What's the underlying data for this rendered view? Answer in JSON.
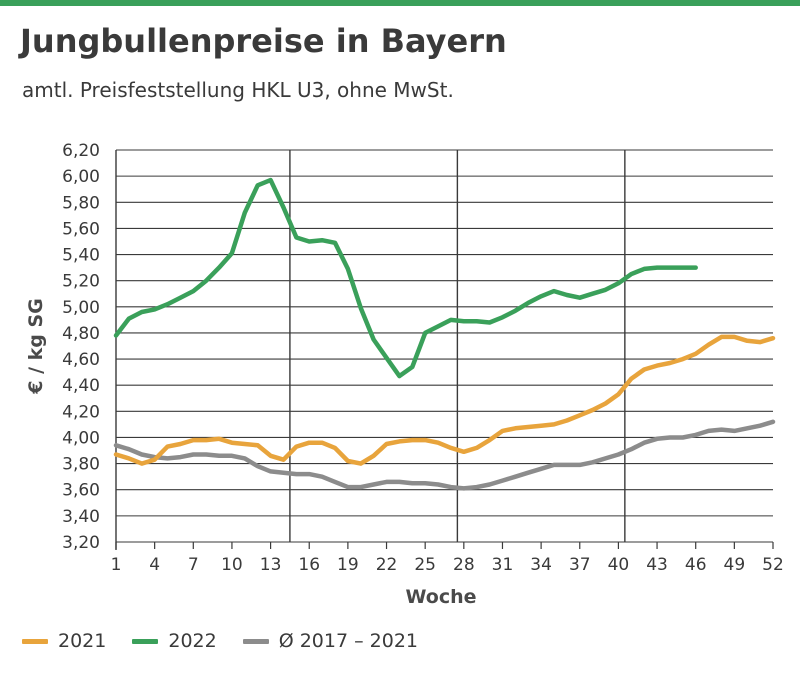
{
  "header": {
    "title": "Jungbullenpreise in Bayern",
    "subtitle": "amtl. Preisfeststellung HKL U3, ohne MwSt."
  },
  "chart_data": {
    "type": "line",
    "title": "Jungbullenpreise in Bayern",
    "subtitle": "amtl. Preisfeststellung HKL U3, ohne MwSt.",
    "xlabel": "Woche",
    "ylabel": "€ / kg SG",
    "xlim": [
      1,
      52
    ],
    "ylim": [
      3.2,
      6.2
    ],
    "x_ticks": [
      1,
      4,
      7,
      10,
      13,
      16,
      19,
      22,
      25,
      28,
      31,
      34,
      37,
      40,
      43,
      46,
      49,
      52
    ],
    "y_ticks": [
      "3,20",
      "3,40",
      "3,60",
      "3,80",
      "4,00",
      "4,20",
      "4,40",
      "4,60",
      "4,80",
      "5,00",
      "5,20",
      "5,40",
      "5,60",
      "5,80",
      "6,00",
      "6,20"
    ],
    "y_tick_values": [
      3.2,
      3.4,
      3.6,
      3.8,
      4.0,
      4.2,
      4.4,
      4.6,
      4.8,
      5.0,
      5.2,
      5.4,
      5.6,
      5.8,
      6.0,
      6.2
    ],
    "vertical_gridlines_at_weeks": [
      14.5,
      27.5,
      40.5
    ],
    "horizontal_grid": true,
    "legend_position": "bottom-left",
    "series": [
      {
        "name": "2021",
        "color": "#e8a43c",
        "x": [
          1,
          2,
          3,
          4,
          5,
          6,
          7,
          8,
          9,
          10,
          11,
          12,
          13,
          14,
          15,
          16,
          17,
          18,
          19,
          20,
          21,
          22,
          23,
          24,
          25,
          26,
          27,
          28,
          29,
          30,
          31,
          32,
          33,
          34,
          35,
          36,
          37,
          38,
          39,
          40,
          41,
          42,
          43,
          44,
          45,
          46,
          47,
          48,
          49,
          50,
          51,
          52
        ],
        "values": [
          3.87,
          3.84,
          3.8,
          3.83,
          3.93,
          3.95,
          3.98,
          3.98,
          3.99,
          3.96,
          3.95,
          3.94,
          3.86,
          3.83,
          3.93,
          3.96,
          3.96,
          3.92,
          3.82,
          3.8,
          3.86,
          3.95,
          3.97,
          3.98,
          3.98,
          3.96,
          3.92,
          3.89,
          3.92,
          3.98,
          4.05,
          4.07,
          4.08,
          4.09,
          4.1,
          4.13,
          4.17,
          4.21,
          4.26,
          4.33,
          4.45,
          4.52,
          4.55,
          4.57,
          4.6,
          4.64,
          4.71,
          4.77,
          4.77,
          4.74,
          4.73,
          4.76
        ]
      },
      {
        "name": "2022",
        "color": "#3aa05a",
        "x": [
          1,
          2,
          3,
          4,
          5,
          6,
          7,
          8,
          9,
          10,
          11,
          12,
          13,
          14,
          15,
          16,
          17,
          18,
          19,
          20,
          21,
          22,
          23,
          24,
          25,
          26,
          27,
          28,
          29,
          30,
          31,
          32,
          33,
          34,
          35,
          36,
          37,
          38,
          39,
          40,
          41,
          42,
          43,
          44,
          45,
          46
        ],
        "values": [
          4.78,
          4.91,
          4.96,
          4.98,
          5.02,
          5.07,
          5.12,
          5.2,
          5.3,
          5.41,
          5.72,
          5.93,
          5.97,
          5.76,
          5.53,
          5.5,
          5.51,
          5.49,
          5.29,
          4.99,
          4.75,
          4.61,
          4.47,
          4.54,
          4.8,
          4.85,
          4.9,
          4.89,
          4.89,
          4.88,
          4.92,
          4.97,
          5.03,
          5.08,
          5.12,
          5.09,
          5.07,
          5.1,
          5.13,
          5.18,
          5.25,
          5.29,
          5.3,
          5.3,
          5.3,
          5.3
        ]
      },
      {
        "name": "Ø 2017 – 2021",
        "color": "#8c8c8c",
        "x": [
          1,
          2,
          3,
          4,
          5,
          6,
          7,
          8,
          9,
          10,
          11,
          12,
          13,
          14,
          15,
          16,
          17,
          18,
          19,
          20,
          21,
          22,
          23,
          24,
          25,
          26,
          27,
          28,
          29,
          30,
          31,
          32,
          33,
          34,
          35,
          36,
          37,
          38,
          39,
          40,
          41,
          42,
          43,
          44,
          45,
          46,
          47,
          48,
          49,
          50,
          51,
          52
        ],
        "values": [
          3.94,
          3.91,
          3.87,
          3.85,
          3.84,
          3.85,
          3.87,
          3.87,
          3.86,
          3.86,
          3.84,
          3.78,
          3.74,
          3.73,
          3.72,
          3.72,
          3.7,
          3.66,
          3.62,
          3.62,
          3.64,
          3.66,
          3.66,
          3.65,
          3.65,
          3.64,
          3.62,
          3.61,
          3.62,
          3.64,
          3.67,
          3.7,
          3.73,
          3.76,
          3.79,
          3.79,
          3.79,
          3.81,
          3.84,
          3.87,
          3.91,
          3.96,
          3.99,
          4.0,
          4.0,
          4.02,
          4.05,
          4.06,
          4.05,
          4.07,
          4.09,
          4.12
        ]
      }
    ]
  }
}
